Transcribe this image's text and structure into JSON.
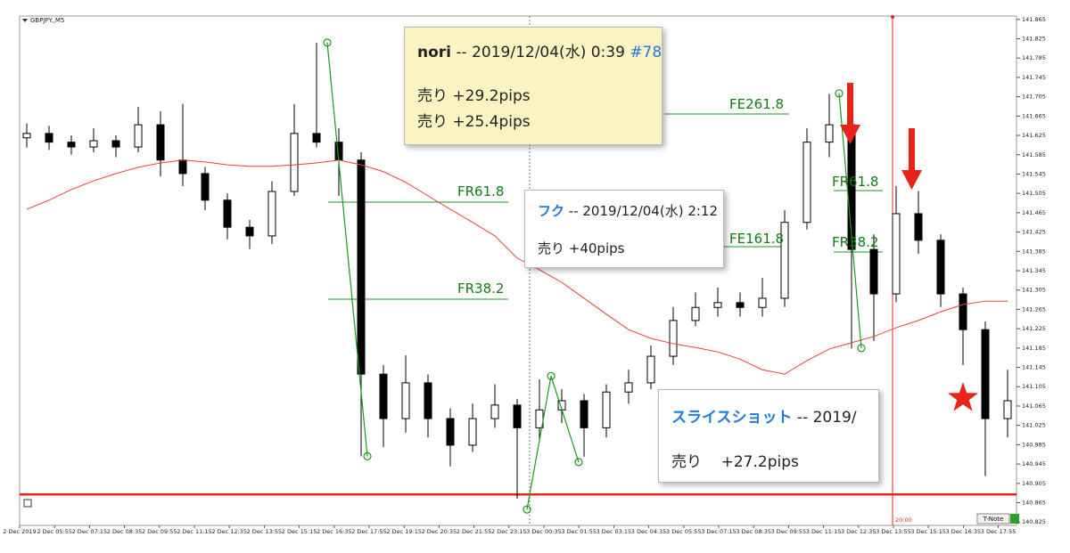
{
  "window": {
    "symbol": "GBPJPY.,M5",
    "button": "T-Note",
    "time_marker": "20:00",
    "fib_labels": [
      "FR61.8",
      "FR38.2",
      "FE261.8",
      "FE161.8",
      "FR61.8",
      "FR38.2"
    ]
  },
  "chart_data": {
    "type": "candlestick",
    "ylim": [
      140.818,
      141.872
    ],
    "xlim": [
      -0.32,
      44.4
    ],
    "yticks": [
      141.865,
      141.825,
      141.785,
      141.745,
      141.705,
      141.665,
      141.625,
      141.585,
      141.545,
      141.505,
      141.465,
      141.425,
      141.385,
      141.345,
      141.305,
      141.265,
      141.225,
      141.185,
      141.145,
      141.105,
      141.065,
      141.025,
      140.985,
      140.945,
      140.905,
      140.865,
      140.825
    ],
    "x_labels": [
      "2 Dec 2019",
      "2 Dec 05:55",
      "2 Dec 07:15",
      "2 Dec 08:35",
      "2 Dec 09:55",
      "2 Dec 11:15",
      "2 Dec 12:35",
      "2 Dec 13:55",
      "2 Dec 15:15",
      "2 Dec 16:35",
      "2 Dec 17:55",
      "2 Dec 19:15",
      "2 Dec 20:35",
      "2 Dec 21:55",
      "2 Dec 23:15",
      "3 Dec 00:35",
      "3 Dec 01:55",
      "3 Dec 03:15",
      "3 Dec 04:35",
      "3 Dec 05:55",
      "3 Dec 07:15",
      "3 Dec 08:35",
      "3 Dec 09:55",
      "3 Dec 11:15",
      "3 Dec 12:35",
      "3 Dec 13:55",
      "3 Dec 15:15",
      "3 Dec 16:35",
      "3 Dec 17:55"
    ],
    "candles": [
      [
        141.62,
        141.65,
        141.6,
        141.629
      ],
      [
        141.629,
        141.645,
        141.595,
        141.611
      ],
      [
        141.611,
        141.625,
        141.585,
        141.601
      ],
      [
        141.601,
        141.64,
        141.59,
        141.614
      ],
      [
        141.614,
        141.625,
        141.58,
        141.601
      ],
      [
        141.601,
        141.684,
        141.59,
        141.647
      ],
      [
        141.647,
        141.675,
        141.54,
        141.574
      ],
      [
        141.574,
        141.69,
        141.52,
        141.546
      ],
      [
        141.546,
        141.56,
        141.47,
        141.491
      ],
      [
        141.491,
        141.505,
        141.41,
        141.435
      ],
      [
        141.435,
        141.45,
        141.39,
        141.417
      ],
      [
        141.417,
        141.53,
        141.4,
        141.509
      ],
      [
        141.509,
        141.69,
        141.5,
        141.629
      ],
      [
        141.629,
        141.817,
        141.6,
        141.611
      ],
      [
        141.611,
        141.64,
        141.5,
        141.574
      ],
      [
        141.574,
        141.59,
        140.961,
        141.131
      ],
      [
        141.131,
        141.15,
        140.98,
        141.039
      ],
      [
        141.039,
        141.17,
        141.01,
        141.113
      ],
      [
        141.113,
        141.13,
        141.0,
        141.039
      ],
      [
        141.039,
        141.06,
        140.94,
        140.984
      ],
      [
        140.984,
        141.07,
        140.97,
        141.039
      ],
      [
        141.039,
        141.11,
        141.02,
        141.067
      ],
      [
        141.067,
        141.08,
        140.873,
        141.02
      ],
      [
        141.02,
        141.12,
        140.99,
        141.057
      ],
      [
        141.057,
        141.1,
        141.03,
        141.076
      ],
      [
        141.076,
        141.09,
        140.96,
        141.02
      ],
      [
        141.02,
        141.11,
        141.0,
        141.094
      ],
      [
        141.094,
        141.14,
        141.07,
        141.113
      ],
      [
        141.113,
        141.19,
        141.1,
        141.168
      ],
      [
        141.168,
        141.27,
        141.15,
        141.242
      ],
      [
        141.242,
        141.3,
        141.23,
        141.269
      ],
      [
        141.269,
        141.31,
        141.25,
        141.279
      ],
      [
        141.279,
        141.3,
        141.25,
        141.269
      ],
      [
        141.269,
        141.33,
        141.25,
        141.288
      ],
      [
        141.288,
        141.47,
        141.27,
        141.445
      ],
      [
        141.445,
        141.64,
        141.43,
        141.611
      ],
      [
        141.611,
        141.711,
        141.58,
        141.647
      ],
      [
        141.647,
        141.66,
        141.184,
        141.389
      ],
      [
        141.389,
        141.42,
        141.2,
        141.297
      ],
      [
        141.297,
        141.52,
        141.28,
        141.463
      ],
      [
        141.463,
        141.51,
        141.38,
        141.408
      ],
      [
        141.408,
        141.42,
        141.27,
        141.297
      ],
      [
        141.297,
        141.31,
        141.15,
        141.223
      ],
      [
        141.223,
        141.24,
        140.92,
        141.039
      ],
      [
        141.039,
        141.14,
        141.0,
        141.076
      ]
    ],
    "ma": {
      "color": "#e8403a",
      "values": [
        141.472,
        141.491,
        141.513,
        141.531,
        141.546,
        141.559,
        141.568,
        141.574,
        141.57,
        141.564,
        141.561,
        141.561,
        141.564,
        141.568,
        141.574,
        141.564,
        141.55,
        141.528,
        141.5,
        141.472,
        141.445,
        141.417,
        141.371,
        141.347,
        141.321,
        141.288,
        141.255,
        141.223,
        141.205,
        141.194,
        141.186,
        141.177,
        141.162,
        141.14,
        141.131,
        141.159,
        141.183,
        141.196,
        141.209,
        141.227,
        141.242,
        141.26,
        141.275,
        141.282,
        141.282
      ]
    },
    "zigzag": {
      "color": "#1a9a1a",
      "lines": [
        [
          [
            13.48,
            141.817
          ],
          [
            15.28,
            140.961
          ]
        ],
        [
          [
            22.44,
            140.851
          ],
          [
            23.52,
            141.127
          ],
          [
            24.76,
            140.949
          ]
        ],
        [
          [
            36.44,
            141.712
          ],
          [
            37.44,
            141.185
          ]
        ]
      ]
    },
    "hline": 140.882,
    "vline_x": 38.84,
    "marker_color": "#e8241a"
  },
  "notes": [
    {
      "author": "nori",
      "meta": "-- 2019/12/04(水) 0:39",
      "ref": "#78",
      "lines": [
        "売り +29.2pips",
        "売り +25.4pips"
      ]
    },
    {
      "author": "フク",
      "meta": "-- 2019/12/04(水) 2:12",
      "lines": [
        "売り +40pips"
      ]
    },
    {
      "author": "スライスショット",
      "meta": "-- 2019/",
      "lines": [
        "売り    +27.2pips"
      ]
    }
  ]
}
